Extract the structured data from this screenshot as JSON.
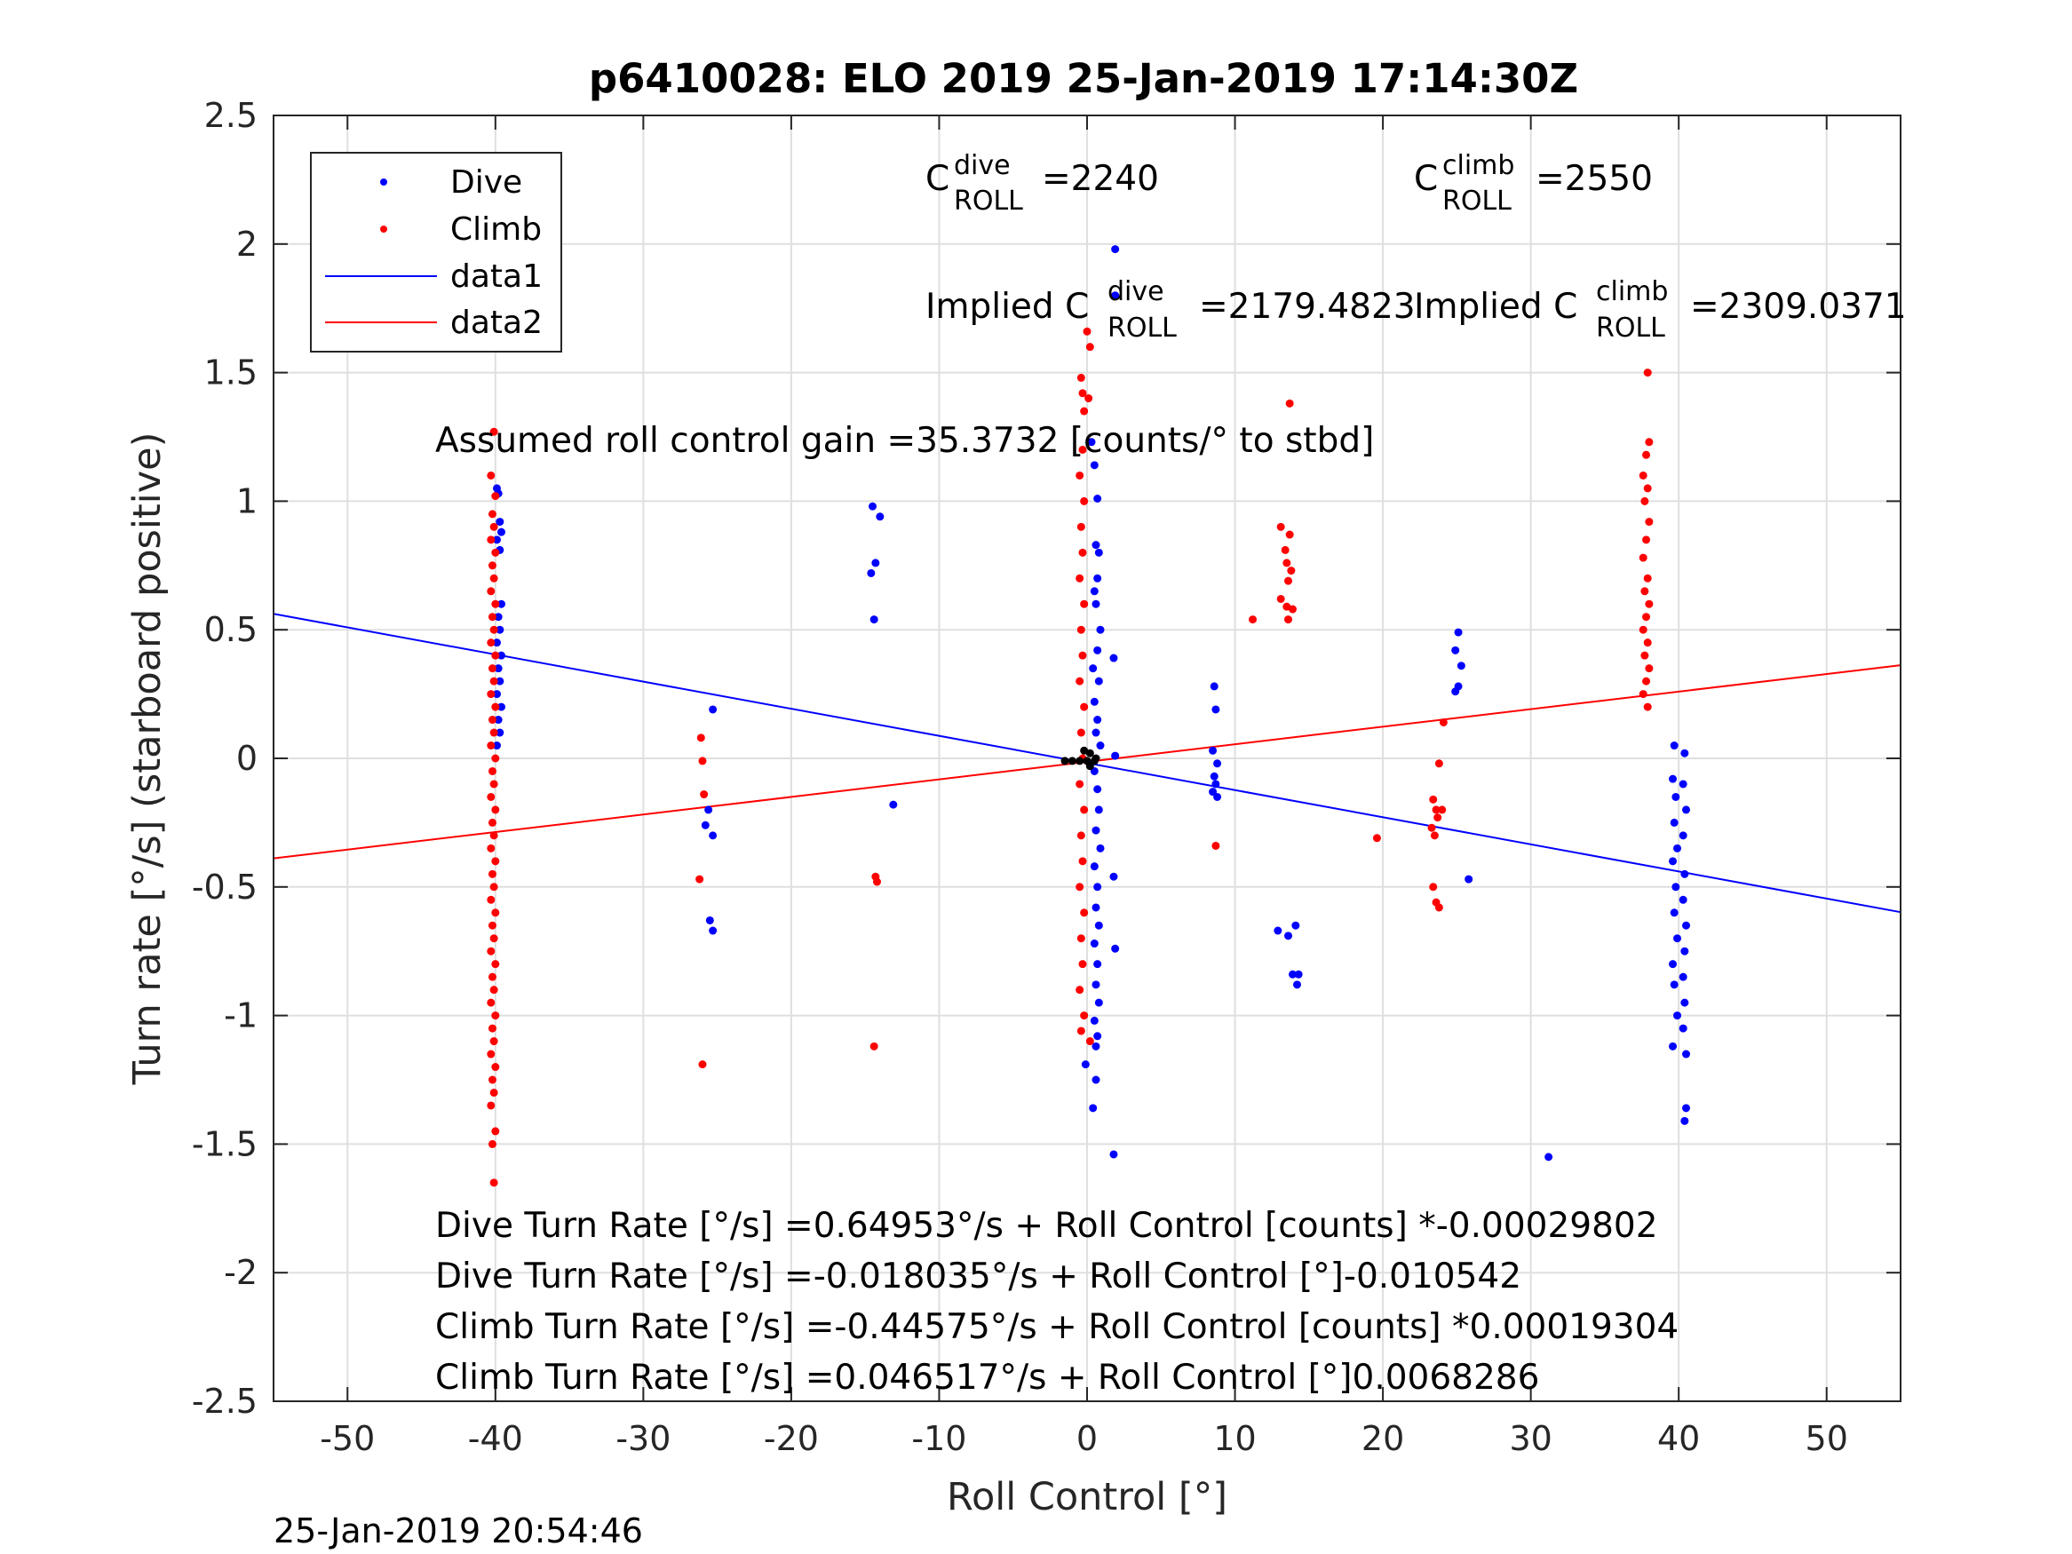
{
  "chart_data": {
    "type": "scatter",
    "title": "p6410028: ELO 2019 25-Jan-2019 17:14:30Z",
    "xlabel": "Roll Control [°]",
    "ylabel": "Turn rate [°/s] (starboard positive)",
    "xlim": [
      -55,
      55
    ],
    "ylim": [
      -2.5,
      2.5
    ],
    "xticks": [
      -50,
      -40,
      -30,
      -20,
      -10,
      0,
      10,
      20,
      30,
      40,
      50
    ],
    "yticks": [
      -2.5,
      -2,
      -1.5,
      -1,
      -0.5,
      0,
      0.5,
      1,
      1.5,
      2,
      2.5
    ],
    "xtick_labels": [
      "-50",
      "-40",
      "-30",
      "-20",
      "-10",
      "0",
      "10",
      "20",
      "30",
      "40",
      "50"
    ],
    "ytick_labels": [
      "-2.5",
      "-2",
      "-1.5",
      "-1",
      "-0.5",
      "0",
      "0.5",
      "1",
      "1.5",
      "2",
      "2.5"
    ],
    "grid": true,
    "legend_position": "top-left",
    "colors": {
      "dive": "#0000ff",
      "climb": "#ff0000",
      "black": "#000000"
    },
    "series": [
      {
        "name": "Dive",
        "kind": "points",
        "color": "#0000ff",
        "points": [
          [
            -39.9,
            1.05
          ],
          [
            -39.8,
            1.03
          ],
          [
            -39.7,
            0.92
          ],
          [
            -39.6,
            0.88
          ],
          [
            -39.9,
            0.85
          ],
          [
            -39.7,
            0.81
          ],
          [
            -39.6,
            0.6
          ],
          [
            -39.8,
            0.55
          ],
          [
            -39.7,
            0.5
          ],
          [
            -39.9,
            0.45
          ],
          [
            -39.6,
            0.4
          ],
          [
            -39.8,
            0.35
          ],
          [
            -39.7,
            0.3
          ],
          [
            -39.9,
            0.25
          ],
          [
            -39.6,
            0.2
          ],
          [
            -39.8,
            0.15
          ],
          [
            -39.7,
            0.1
          ],
          [
            -39.9,
            0.05
          ],
          [
            -25.3,
            0.19
          ],
          [
            -25.6,
            -0.2
          ],
          [
            -25.8,
            -0.26
          ],
          [
            -25.3,
            -0.3
          ],
          [
            -25.5,
            -0.63
          ],
          [
            -25.3,
            -0.67
          ],
          [
            -14.5,
            0.98
          ],
          [
            -14.0,
            0.94
          ],
          [
            -14.3,
            0.76
          ],
          [
            -14.6,
            0.72
          ],
          [
            -14.4,
            0.54
          ],
          [
            -13.1,
            -0.18
          ],
          [
            0.3,
            1.23
          ],
          [
            0.5,
            1.14
          ],
          [
            0.7,
            1.01
          ],
          [
            0.6,
            0.83
          ],
          [
            0.8,
            0.8
          ],
          [
            0.7,
            0.7
          ],
          [
            0.5,
            0.65
          ],
          [
            0.6,
            0.6
          ],
          [
            0.9,
            0.5
          ],
          [
            0.7,
            0.42
          ],
          [
            0.4,
            0.35
          ],
          [
            0.8,
            0.3
          ],
          [
            0.5,
            0.22
          ],
          [
            0.7,
            0.15
          ],
          [
            0.6,
            0.1
          ],
          [
            0.9,
            0.05
          ],
          [
            0.5,
            -0.05
          ],
          [
            0.7,
            -0.12
          ],
          [
            0.8,
            -0.2
          ],
          [
            0.6,
            -0.28
          ],
          [
            0.9,
            -0.35
          ],
          [
            0.5,
            -0.42
          ],
          [
            0.7,
            -0.5
          ],
          [
            0.6,
            -0.58
          ],
          [
            0.8,
            -0.65
          ],
          [
            0.5,
            -0.72
          ],
          [
            0.7,
            -0.8
          ],
          [
            0.6,
            -0.88
          ],
          [
            0.8,
            -0.95
          ],
          [
            0.5,
            -1.02
          ],
          [
            0.7,
            -1.08
          ],
          [
            0.6,
            -1.12
          ],
          [
            -0.1,
            -1.19
          ],
          [
            0.6,
            -1.25
          ],
          [
            0.4,
            -1.36
          ],
          [
            1.8,
            -1.54
          ],
          [
            1.9,
            1.98
          ],
          [
            1.9,
            1.8
          ],
          [
            1.8,
            0.39
          ],
          [
            1.9,
            0.01
          ],
          [
            1.8,
            -0.46
          ],
          [
            1.9,
            -0.74
          ],
          [
            8.6,
            0.28
          ],
          [
            8.7,
            0.19
          ],
          [
            8.5,
            0.03
          ],
          [
            8.8,
            -0.02
          ],
          [
            8.6,
            -0.07
          ],
          [
            8.7,
            -0.1
          ],
          [
            8.5,
            -0.13
          ],
          [
            8.8,
            -0.15
          ],
          [
            12.9,
            -0.67
          ],
          [
            13.6,
            -0.69
          ],
          [
            14.1,
            -0.65
          ],
          [
            13.9,
            -0.84
          ],
          [
            14.3,
            -0.84
          ],
          [
            14.2,
            -0.88
          ],
          [
            25.1,
            0.49
          ],
          [
            24.9,
            0.42
          ],
          [
            25.3,
            0.36
          ],
          [
            25.1,
            0.28
          ],
          [
            24.9,
            0.26
          ],
          [
            25.8,
            -0.47
          ],
          [
            31.2,
            -1.55
          ],
          [
            39.7,
            0.05
          ],
          [
            40.4,
            0.02
          ],
          [
            39.6,
            -0.08
          ],
          [
            40.3,
            -0.1
          ],
          [
            39.8,
            -0.15
          ],
          [
            40.5,
            -0.2
          ],
          [
            39.7,
            -0.25
          ],
          [
            40.3,
            -0.3
          ],
          [
            39.9,
            -0.35
          ],
          [
            39.6,
            -0.4
          ],
          [
            40.4,
            -0.45
          ],
          [
            39.8,
            -0.5
          ],
          [
            40.3,
            -0.55
          ],
          [
            39.7,
            -0.6
          ],
          [
            40.5,
            -0.65
          ],
          [
            39.9,
            -0.7
          ],
          [
            40.4,
            -0.75
          ],
          [
            39.6,
            -0.8
          ],
          [
            40.3,
            -0.85
          ],
          [
            39.7,
            -0.88
          ],
          [
            40.4,
            -0.95
          ],
          [
            39.9,
            -1.0
          ],
          [
            40.3,
            -1.05
          ],
          [
            39.6,
            -1.12
          ],
          [
            40.5,
            -1.15
          ],
          [
            40.5,
            -1.36
          ],
          [
            40.4,
            -1.41
          ]
        ]
      },
      {
        "name": "Climb",
        "kind": "points",
        "color": "#ff0000",
        "points": [
          [
            -40.1,
            1.27
          ],
          [
            -40.3,
            1.1
          ],
          [
            -40.0,
            1.02
          ],
          [
            -40.2,
            0.95
          ],
          [
            -40.1,
            0.9
          ],
          [
            -40.3,
            0.85
          ],
          [
            -40.0,
            0.8
          ],
          [
            -40.2,
            0.75
          ],
          [
            -40.1,
            0.7
          ],
          [
            -40.3,
            0.65
          ],
          [
            -40.0,
            0.6
          ],
          [
            -40.2,
            0.55
          ],
          [
            -40.1,
            0.5
          ],
          [
            -40.3,
            0.45
          ],
          [
            -40.0,
            0.4
          ],
          [
            -40.2,
            0.35
          ],
          [
            -40.1,
            0.3
          ],
          [
            -40.3,
            0.25
          ],
          [
            -40.0,
            0.2
          ],
          [
            -40.2,
            0.15
          ],
          [
            -40.1,
            0.1
          ],
          [
            -40.3,
            0.05
          ],
          [
            -40.0,
            0.0
          ],
          [
            -40.2,
            -0.05
          ],
          [
            -40.1,
            -0.1
          ],
          [
            -40.3,
            -0.15
          ],
          [
            -40.0,
            -0.2
          ],
          [
            -40.2,
            -0.25
          ],
          [
            -40.1,
            -0.3
          ],
          [
            -40.3,
            -0.35
          ],
          [
            -40.0,
            -0.4
          ],
          [
            -40.2,
            -0.45
          ],
          [
            -40.1,
            -0.5
          ],
          [
            -40.3,
            -0.55
          ],
          [
            -40.0,
            -0.6
          ],
          [
            -40.2,
            -0.65
          ],
          [
            -40.1,
            -0.7
          ],
          [
            -40.3,
            -0.75
          ],
          [
            -40.0,
            -0.8
          ],
          [
            -40.2,
            -0.85
          ],
          [
            -40.1,
            -0.9
          ],
          [
            -40.3,
            -0.95
          ],
          [
            -40.0,
            -1.0
          ],
          [
            -40.2,
            -1.05
          ],
          [
            -40.1,
            -1.1
          ],
          [
            -40.3,
            -1.15
          ],
          [
            -40.0,
            -1.2
          ],
          [
            -40.2,
            -1.25
          ],
          [
            -40.1,
            -1.3
          ],
          [
            -40.3,
            -1.35
          ],
          [
            -40.0,
            -1.45
          ],
          [
            -40.2,
            -1.5
          ],
          [
            -40.1,
            -1.65
          ],
          [
            -26.1,
            0.08
          ],
          [
            -26.0,
            -0.01
          ],
          [
            -25.9,
            -0.14
          ],
          [
            -26.2,
            -0.47
          ],
          [
            -26.0,
            -1.19
          ],
          [
            -14.3,
            -0.46
          ],
          [
            -14.2,
            -0.48
          ],
          [
            -14.4,
            -1.12
          ],
          [
            -0.4,
            1.48
          ],
          [
            -0.3,
            1.42
          ],
          [
            -0.2,
            1.35
          ],
          [
            -0.3,
            1.2
          ],
          [
            -0.5,
            1.1
          ],
          [
            -0.2,
            1.0
          ],
          [
            -0.4,
            0.9
          ],
          [
            -0.3,
            0.8
          ],
          [
            -0.5,
            0.7
          ],
          [
            -0.2,
            0.6
          ],
          [
            -0.4,
            0.5
          ],
          [
            -0.3,
            0.4
          ],
          [
            -0.5,
            0.3
          ],
          [
            -0.2,
            0.2
          ],
          [
            -0.4,
            0.1
          ],
          [
            -0.3,
            0.0
          ],
          [
            -0.5,
            -0.1
          ],
          [
            -0.2,
            -0.2
          ],
          [
            -0.4,
            -0.3
          ],
          [
            -0.3,
            -0.4
          ],
          [
            -0.5,
            -0.5
          ],
          [
            -0.2,
            -0.6
          ],
          [
            -0.4,
            -0.7
          ],
          [
            -0.3,
            -0.8
          ],
          [
            -0.5,
            -0.9
          ],
          [
            -0.2,
            -1.0
          ],
          [
            -0.4,
            -1.06
          ],
          [
            0.0,
            1.66
          ],
          [
            0.2,
            1.6
          ],
          [
            0.1,
            1.4
          ],
          [
            0.2,
            -1.1
          ],
          [
            8.7,
            -0.34
          ],
          [
            11.2,
            0.54
          ],
          [
            13.1,
            0.9
          ],
          [
            13.4,
            0.81
          ],
          [
            13.7,
            0.87
          ],
          [
            13.5,
            0.76
          ],
          [
            13.8,
            0.73
          ],
          [
            13.6,
            0.69
          ],
          [
            13.1,
            0.62
          ],
          [
            13.5,
            0.59
          ],
          [
            13.9,
            0.58
          ],
          [
            13.6,
            0.54
          ],
          [
            13.7,
            1.38
          ],
          [
            19.6,
            -0.31
          ],
          [
            23.4,
            -0.16
          ],
          [
            23.6,
            -0.2
          ],
          [
            23.3,
            -0.27
          ],
          [
            23.8,
            -0.02
          ],
          [
            24.1,
            0.14
          ],
          [
            23.5,
            -0.3
          ],
          [
            23.7,
            -0.23
          ],
          [
            23.4,
            -0.5
          ],
          [
            23.6,
            -0.56
          ],
          [
            23.8,
            -0.58
          ],
          [
            24.0,
            -0.2
          ],
          [
            37.9,
            1.5
          ],
          [
            38.0,
            1.23
          ],
          [
            37.8,
            1.18
          ],
          [
            37.6,
            1.1
          ],
          [
            37.9,
            1.05
          ],
          [
            37.7,
            1.0
          ],
          [
            38.0,
            0.92
          ],
          [
            37.8,
            0.85
          ],
          [
            37.6,
            0.78
          ],
          [
            37.9,
            0.7
          ],
          [
            37.7,
            0.65
          ],
          [
            38.0,
            0.6
          ],
          [
            37.8,
            0.55
          ],
          [
            37.6,
            0.5
          ],
          [
            37.9,
            0.45
          ],
          [
            37.7,
            0.4
          ],
          [
            38.0,
            0.35
          ],
          [
            37.8,
            0.3
          ],
          [
            37.6,
            0.25
          ],
          [
            37.9,
            0.2
          ]
        ]
      },
      {
        "name": "data1",
        "kind": "line",
        "color": "#0000ff",
        "x": [
          -55,
          55
        ],
        "y": [
          0.562,
          -0.598
        ]
      },
      {
        "name": "data2",
        "kind": "line",
        "color": "#ff0000",
        "x": [
          -55,
          55
        ],
        "y": [
          -0.389,
          0.362
        ]
      },
      {
        "name": "",
        "kind": "points",
        "color": "#000000",
        "points": [
          [
            -1.5,
            -0.01
          ],
          [
            -1.0,
            -0.01
          ],
          [
            -0.5,
            -0.01
          ],
          [
            0.0,
            -0.01
          ],
          [
            0.5,
            -0.01
          ],
          [
            0.2,
            0.02
          ],
          [
            0.2,
            -0.03
          ],
          [
            -0.2,
            0.03
          ],
          [
            0.6,
            0.0
          ]
        ]
      }
    ],
    "annotations": {
      "c_dive_sym": "C",
      "c_dive_sup": "dive",
      "c_dive_sub": "ROLL",
      "c_dive_val": "=2240",
      "c_climb_sym": "C",
      "c_climb_sup": "climb",
      "c_climb_sub": "ROLL",
      "c_climb_val": "=2550",
      "implied_dive_pre": "Implied C",
      "implied_dive_sup": "dive",
      "implied_dive_sub": "ROLL",
      "implied_dive_val": "=2179.4823",
      "implied_climb_pre": "Implied C",
      "implied_climb_sup": "climb",
      "implied_climb_sub": "ROLL",
      "implied_climb_val": "=2309.0371",
      "gain": "Assumed roll control gain =35.3732 [counts/° to stbd]",
      "eq1": "Dive Turn Rate [°/s] =0.64953°/s + Roll Control [counts] *-0.00029802",
      "eq2": "Dive Turn Rate [°/s] =-0.018035°/s + Roll Control [°]-0.010542",
      "eq3": "Climb Turn Rate [°/s] =-0.44575°/s + Roll Control [counts] *0.00019304",
      "eq4": "Climb Turn Rate [°/s] =0.046517°/s + Roll Control [°]0.0068286"
    },
    "legend": [
      "Dive",
      "Climb",
      "data1",
      "data2"
    ]
  },
  "footer_timestamp": "25-Jan-2019 20:54:46"
}
